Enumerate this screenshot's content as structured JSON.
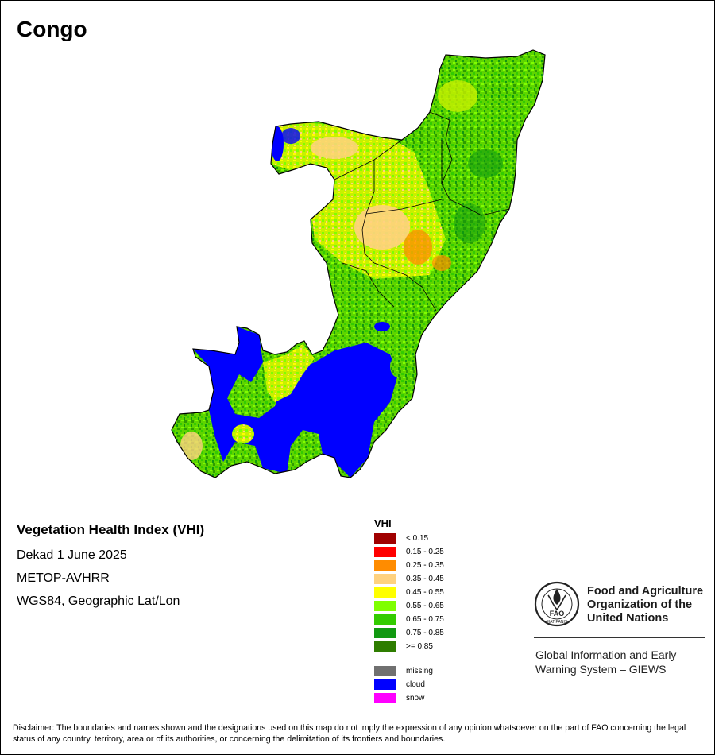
{
  "title": "Congo",
  "info": {
    "product": "Vegetation Health Index (VHI)",
    "period": "Dekad 1 June 2025",
    "sensor": "METOP-AVHRR",
    "projection": "WGS84, Geographic Lat/Lon"
  },
  "legend": {
    "title": "VHI",
    "classes": [
      {
        "label": "< 0.15",
        "color": "#a00000"
      },
      {
        "label": "0.15 - 0.25",
        "color": "#ff0000"
      },
      {
        "label": "0.25 - 0.35",
        "color": "#ff8c00"
      },
      {
        "label": "0.35 - 0.45",
        "color": "#ffd27f"
      },
      {
        "label": "0.45 - 0.55",
        "color": "#ffff00"
      },
      {
        "label": "0.55 - 0.65",
        "color": "#7fff00"
      },
      {
        "label": "0.65 - 0.75",
        "color": "#33cc00"
      },
      {
        "label": "0.75 - 0.85",
        "color": "#119911"
      },
      {
        "label": ">= 0.85",
        "color": "#2e7d00"
      }
    ],
    "special": [
      {
        "label": "missing",
        "color": "#707070"
      },
      {
        "label": "cloud",
        "color": "#0000ff"
      },
      {
        "label": "snow",
        "color": "#ff00ff"
      }
    ]
  },
  "logo": {
    "org_lines": [
      "Food and Agriculture",
      "Organization of the",
      "United Nations"
    ],
    "seal_text": "FAO",
    "seal_motto": "FIAT PANIS",
    "system_lines": [
      "Global Information and Early",
      "Warning System – GIEWS"
    ]
  },
  "disclaimer": "Disclaimer: The boundaries and names shown and the designations used on this map do not imply the expression of any opinion whatsoever on the part of FAO concerning the legal status of any country, territory, area or of its authorities, or concerning the delimitation of its frontiers and boundaries."
}
